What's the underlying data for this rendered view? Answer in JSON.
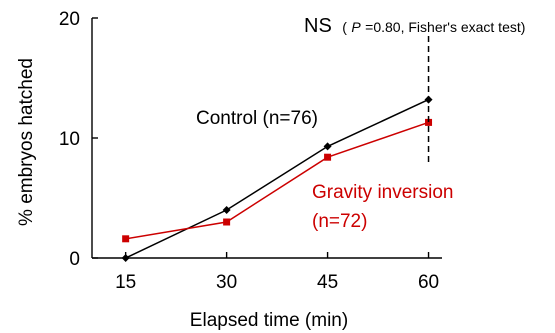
{
  "chart_data": {
    "type": "line",
    "title": "",
    "xlabel": "Elapsed time (min)",
    "ylabel": "% embryos hatched",
    "x": [
      15,
      30,
      45,
      60
    ],
    "xlim": [
      10,
      62
    ],
    "ylim": [
      0,
      20
    ],
    "yticks": [
      0,
      10,
      20
    ],
    "xticks": [
      15,
      30,
      45,
      60
    ],
    "series": [
      {
        "name": "Control",
        "label_line1": "Control (n=76)",
        "label_line2": "",
        "color": "#000000",
        "marker": "diamond",
        "values": [
          0.0,
          4.0,
          9.3,
          13.2
        ]
      },
      {
        "name": "Gravity inversion",
        "label_line1": "Gravity inversion",
        "label_line2": "(n=72)",
        "color": "#cc0000",
        "marker": "square",
        "values": [
          1.6,
          3.0,
          8.4,
          11.3
        ]
      }
    ],
    "annotation": {
      "ns": "NS",
      "stat_open": "(",
      "stat_p": "P",
      "stat_rest": "=0.80, Fisher's exact test)",
      "dashed_at_x": 60,
      "dashed_from_y": 11.3,
      "dashed_to_y": 20
    },
    "grid": false,
    "legend": "inline labels"
  }
}
